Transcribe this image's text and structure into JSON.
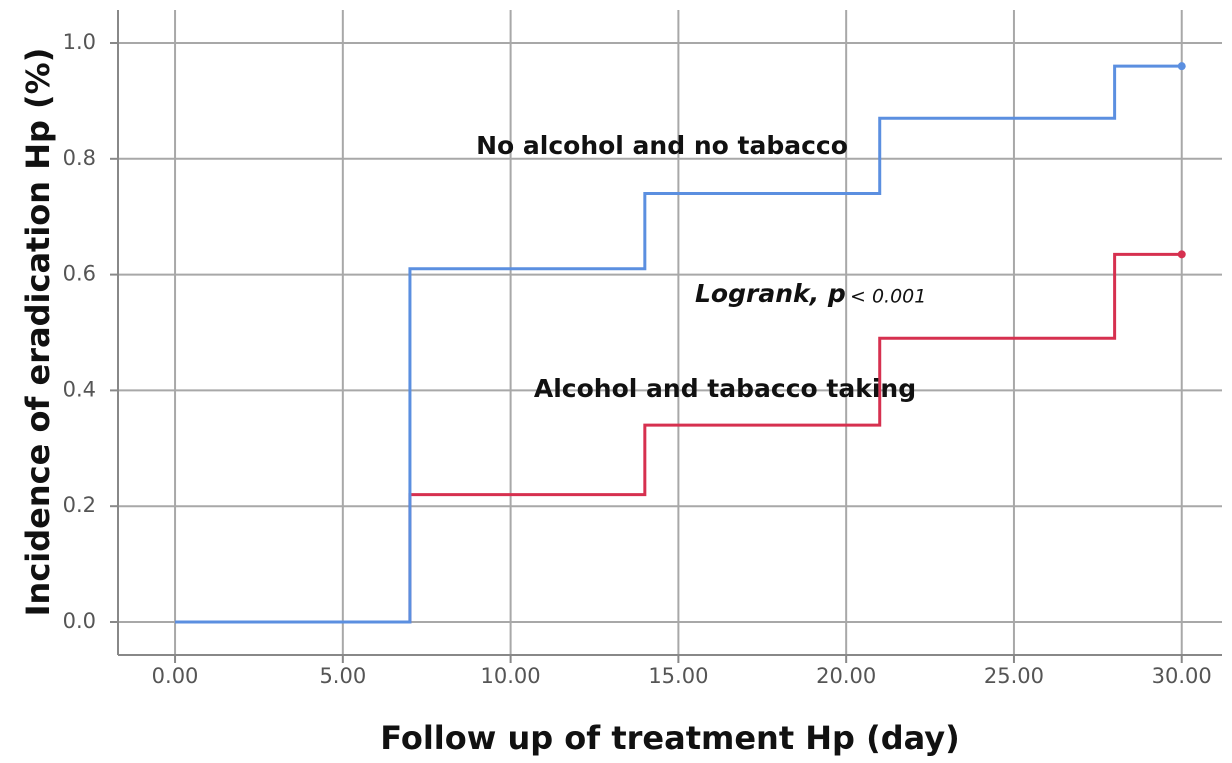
{
  "chart_data": {
    "type": "step",
    "xlabel": "Follow up of treatment Hp (day)",
    "ylabel": "Incidence of eradication Hp (%)",
    "annotations": [
      "No alcohol and no tabacco",
      "Logrank, p",
      "< 0.001",
      "Alcohol and tabacco taking"
    ],
    "series": [
      {
        "name": "No alcohol and no tabacco",
        "color": "#5b8fe0",
        "x": [
          0,
          7,
          14,
          21,
          28,
          30
        ],
        "values": [
          0,
          0.61,
          0.74,
          0.87,
          0.96,
          0.96
        ]
      },
      {
        "name": "Alcohol and tabacco taking",
        "color": "#d6304f",
        "x": [
          0,
          7,
          14,
          21,
          28,
          30
        ],
        "values": [
          0,
          0.22,
          0.34,
          0.49,
          0.635,
          0.635
        ]
      }
    ],
    "xlim": [
      -1.7,
      31.2
    ],
    "ylim": [
      -0.057,
      1.057
    ],
    "xticks": [
      {
        "value": 0,
        "label": "0.00"
      },
      {
        "value": 5,
        "label": "5.00"
      },
      {
        "value": 10,
        "label": "10.00"
      },
      {
        "value": 15,
        "label": "15.00"
      },
      {
        "value": 20,
        "label": "20.00"
      },
      {
        "value": 25,
        "label": "25.00"
      },
      {
        "value": 30,
        "label": "30.00"
      }
    ],
    "yticks": [
      {
        "value": 0,
        "label": "0.0"
      },
      {
        "value": 0.2,
        "label": "0.2"
      },
      {
        "value": 0.4,
        "label": "0.4"
      },
      {
        "value": 0.6,
        "label": "0.6"
      },
      {
        "value": 0.8,
        "label": "0.8"
      },
      {
        "value": 1,
        "label": "1.0"
      }
    ],
    "grid": true
  }
}
